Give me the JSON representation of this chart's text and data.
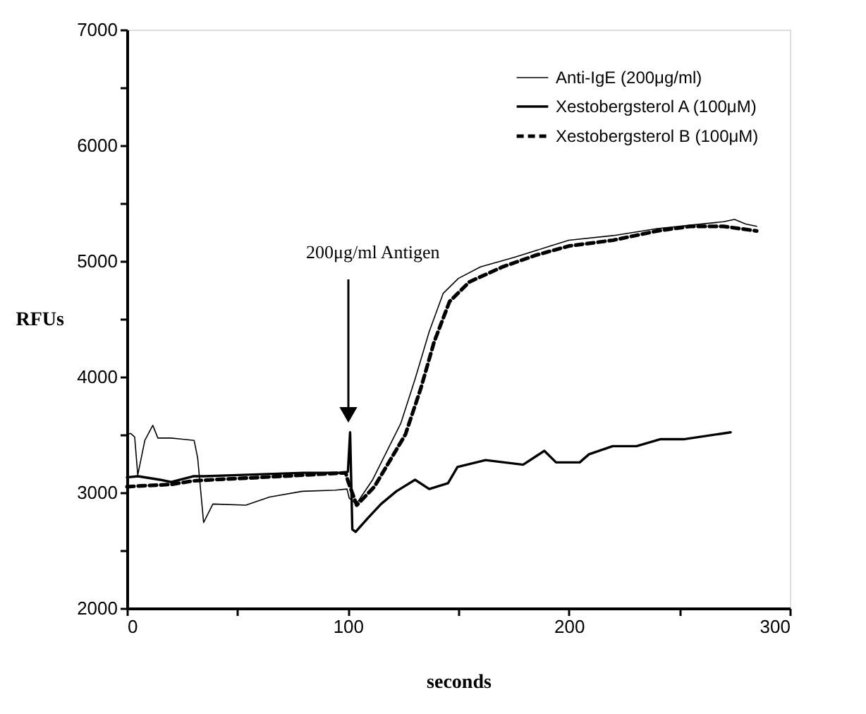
{
  "chart_data": {
    "type": "line",
    "xlabel": "seconds",
    "ylabel": "RFUs",
    "xlim": [
      0,
      300
    ],
    "ylim": [
      2000,
      7000
    ],
    "xticks": [
      0,
      {
        "value": 50,
        "label": null
      },
      100,
      {
        "value": 150,
        "label": null
      },
      200,
      {
        "value": 250,
        "label": null
      },
      300
    ],
    "yticks": [
      2000,
      {
        "value": 2500,
        "label": null
      },
      3000,
      {
        "value": 3500,
        "label": null
      },
      4000,
      {
        "value": 4500,
        "label": null
      },
      5000,
      {
        "value": 5500,
        "label": null
      },
      6000,
      {
        "value": 6500,
        "label": null
      },
      7000
    ],
    "grid": false,
    "legend": "top right",
    "marker": "none",
    "annotations": [
      "200μg/ml Antigen"
    ],
    "series": [
      {
        "name": "Anti-IgE (200μg/ml)",
        "color": "#000000",
        "line_style": "solid",
        "x": [
          0,
          1.7,
          3.5,
          4.9,
          8.1,
          11.7,
          14,
          20,
          30.4,
          32,
          34.7,
          38.9,
          53.8,
          64.5,
          79.3,
          94.2,
          99.6,
          100.6,
          103.8,
          111.2,
          124,
          130.4,
          136.8,
          143.1,
          150,
          160,
          175,
          190,
          200,
          220,
          240,
          255,
          270,
          275,
          280,
          285
        ],
        "values": [
          3500,
          3510,
          3480,
          3150,
          3450,
          3580,
          3470,
          3470,
          3450,
          3300,
          2740,
          2900,
          2890,
          2960,
          3010,
          3020,
          3030,
          2950,
          2900,
          3110,
          3600,
          3980,
          4390,
          4720,
          4850,
          4950,
          5030,
          5120,
          5180,
          5220,
          5280,
          5310,
          5340,
          5360,
          5320,
          5300
        ]
      },
      {
        "name": "Xestobergsterol A (100μM)",
        "color": "#000000",
        "line_style": "solid",
        "x": [
          0,
          5,
          15,
          20,
          30,
          35,
          50,
          80,
          99,
          100,
          101,
          102,
          103.5,
          109.1,
          115,
          121.9,
          130.4,
          136.8,
          145.3,
          149.6,
          162.3,
          179.3,
          188.9,
          194.2,
          204.9,
          209.1,
          219.8,
          230.6,
          241.3,
          251.9,
          273.2
        ],
        "values": [
          3130,
          3140,
          3110,
          3090,
          3140,
          3140,
          3150,
          3170,
          3170,
          3180,
          3520,
          2680,
          2660,
          2780,
          2900,
          3010,
          3110,
          3030,
          3080,
          3220,
          3280,
          3240,
          3360,
          3260,
          3260,
          3330,
          3400,
          3400,
          3460,
          3460,
          3520
        ]
      },
      {
        "name": "Xestobergsterol B (100μM)",
        "color": "#000000",
        "line_style": "dashed",
        "x": [
          0,
          10,
          20,
          30,
          38.9,
          60,
          80,
          99,
          100,
          104,
          112,
          126,
          133,
          139,
          146,
          155,
          170,
          185,
          200,
          220,
          240,
          255,
          270,
          285
        ],
        "values": [
          3050,
          3060,
          3070,
          3100,
          3110,
          3130,
          3150,
          3170,
          3100,
          2890,
          3050,
          3500,
          3900,
          4300,
          4650,
          4820,
          4950,
          5050,
          5130,
          5180,
          5260,
          5300,
          5300,
          5260
        ]
      }
    ]
  }
}
